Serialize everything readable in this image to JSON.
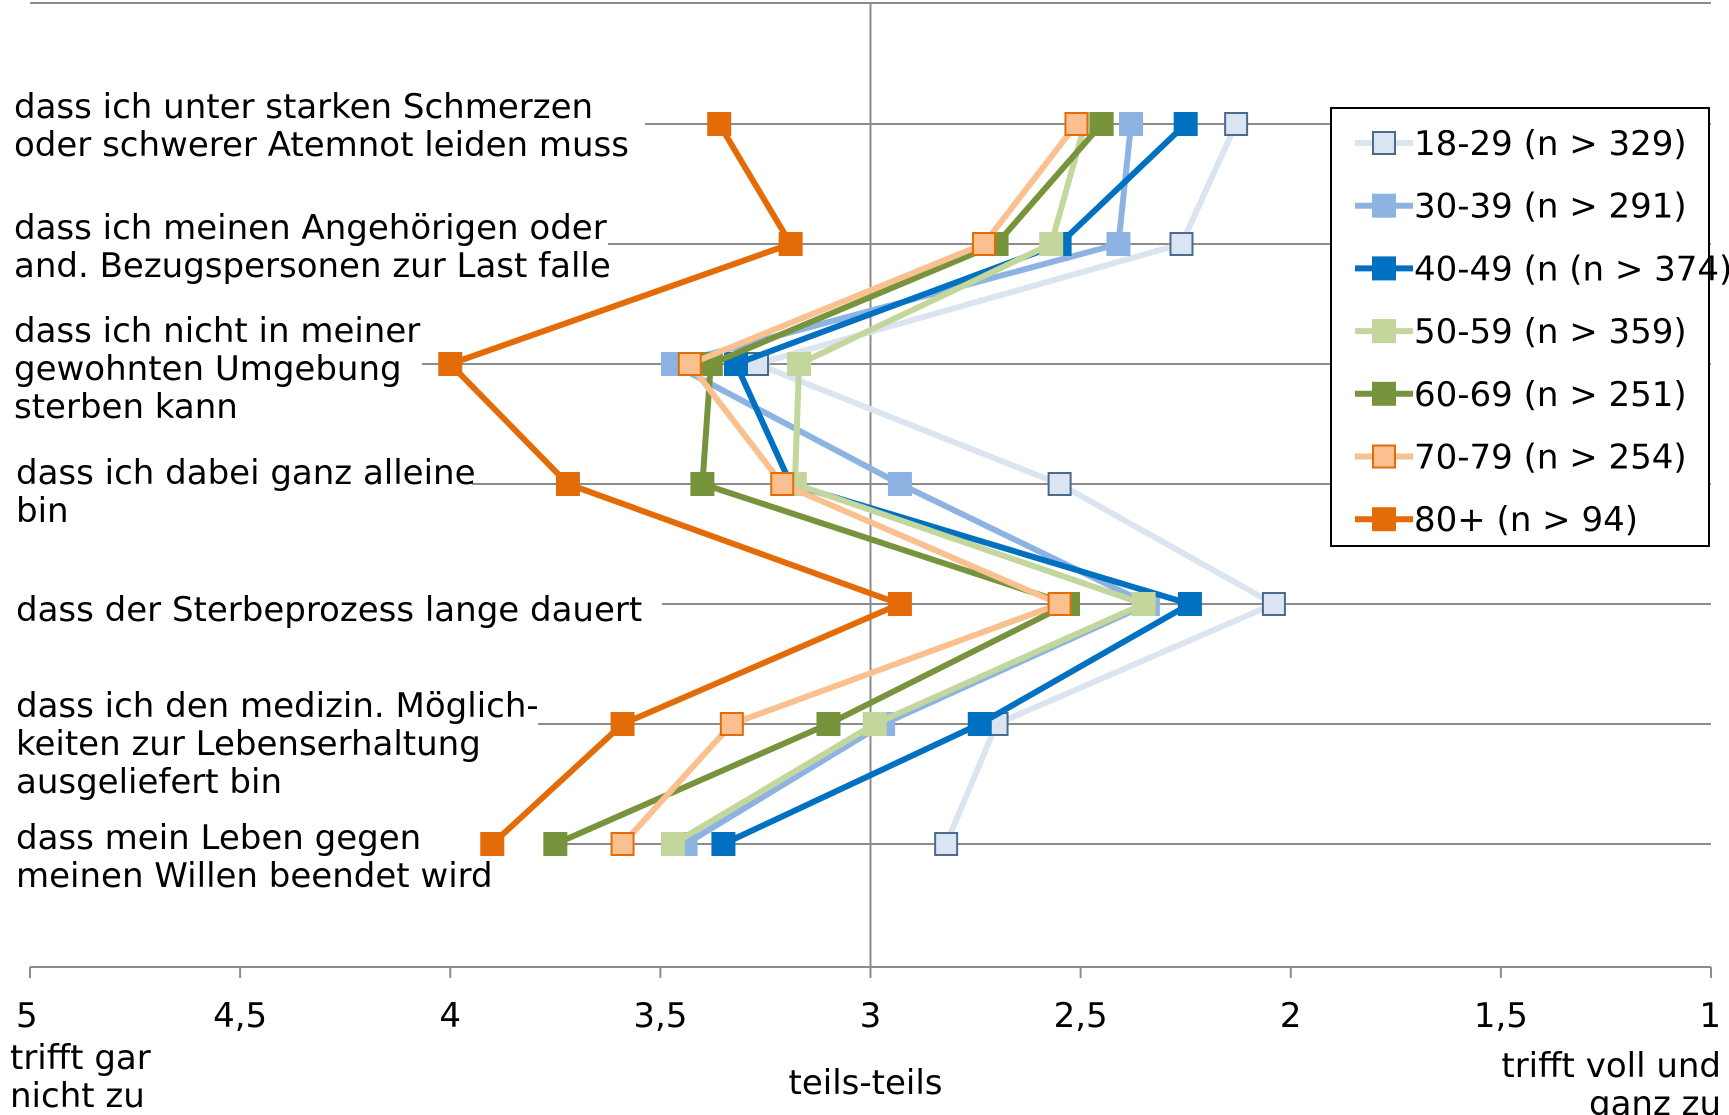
{
  "chart_data": {
    "type": "line",
    "orientation": "horizontal-categories",
    "x_axis": {
      "min": 1,
      "max": 5,
      "reversed": true,
      "ticks": [
        5,
        4.5,
        4,
        3.5,
        3,
        2.5,
        2,
        1.5,
        1
      ],
      "tick_labels": [
        "5",
        "4,5",
        "4",
        "3,5",
        "3",
        "2,5",
        "2",
        "1,5",
        "1"
      ],
      "left_note": [
        "trifft gar",
        "nicht zu"
      ],
      "center_note": "teils-teils",
      "right_note": [
        "trifft voll und",
        "ganz zu"
      ]
    },
    "categories": [
      [
        "dass ich unter starken Schmerzen",
        "oder schwerer Atemnot leiden muss"
      ],
      [
        "dass ich meinen Angehörigen oder",
        "and. Bezugspersonen zur Last falle"
      ],
      [
        "dass ich nicht in meiner",
        "gewohnten Umgebung",
        "sterben kann"
      ],
      [
        "dass ich dabei ganz alleine",
        "bin"
      ],
      [
        "dass der Sterbeprozess lange dauert"
      ],
      [
        "dass ich den medizin. Möglich-",
        "keiten zur Lebenserhaltung",
        "ausgeliefert bin"
      ],
      [
        "dass mein Leben gegen",
        "meinen Willen beendet wird"
      ]
    ],
    "series": [
      {
        "name": "18-29 (n > 329)",
        "values": [
          2.13,
          2.26,
          3.27,
          2.55,
          2.04,
          2.7,
          2.82
        ],
        "color": "#dbe5f1",
        "marker_fill": "#dbe5f1",
        "marker_stroke": "#4a6a8f"
      },
      {
        "name": "30-39 (n > 291)",
        "values": [
          2.38,
          2.41,
          3.47,
          2.93,
          2.34,
          2.97,
          3.44
        ],
        "color": "#8db3e2",
        "marker_fill": "#8db3e2",
        "marker_stroke": "#8db3e2"
      },
      {
        "name": "40-49 (n (n > 374)",
        "values": [
          2.25,
          2.55,
          3.32,
          3.19,
          2.24,
          2.74,
          3.35
        ],
        "color": "#0070c0",
        "marker_fill": "#0070c0",
        "marker_stroke": "#0070c0"
      },
      {
        "name": "50-59 (n > 359)",
        "values": [
          2.49,
          2.57,
          3.17,
          3.18,
          2.35,
          2.99,
          3.47
        ],
        "color": "#c3d69b",
        "marker_fill": "#c3d69b",
        "marker_stroke": "#c3d69b"
      },
      {
        "name": "60-69 (n > 251)",
        "values": [
          2.45,
          2.7,
          3.38,
          3.4,
          2.53,
          3.1,
          3.75
        ],
        "color": "#77933c",
        "marker_fill": "#77933c",
        "marker_stroke": "#77933c"
      },
      {
        "name": "70-79 (n > 254)",
        "values": [
          2.51,
          2.73,
          3.43,
          3.21,
          2.55,
          3.33,
          3.59
        ],
        "color": "#fac090",
        "marker_fill": "#fac090",
        "marker_stroke": "#e36c09"
      },
      {
        "name": "80+ (n > 94)",
        "values": [
          3.36,
          3.19,
          4.0,
          3.72,
          2.93,
          3.59,
          3.9
        ],
        "color": "#e36c09",
        "marker_fill": "#e36c09",
        "marker_stroke": "#e36c09"
      }
    ],
    "grid": true,
    "legend_position": "right-top"
  }
}
